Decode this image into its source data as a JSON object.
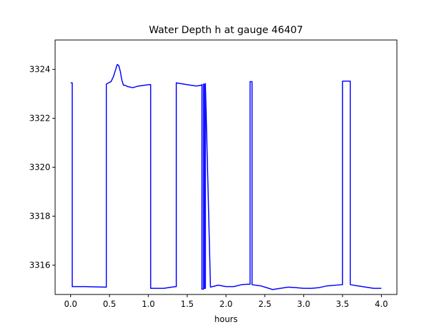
{
  "chart_data": {
    "type": "line",
    "title": "Water Depth h at gauge 46407",
    "xlabel": "hours",
    "ylabel": "",
    "xlim": [
      -0.2,
      4.2
    ],
    "ylim": [
      3314.8,
      3325.2
    ],
    "xticks": [
      0.0,
      0.5,
      1.0,
      1.5,
      2.0,
      2.5,
      3.0,
      3.5,
      4.0
    ],
    "xtick_labels": [
      "0.0",
      "0.5",
      "1.0",
      "1.5",
      "2.0",
      "2.5",
      "3.0",
      "3.5",
      "4.0"
    ],
    "yticks": [
      3316,
      3318,
      3320,
      3322,
      3324
    ],
    "ytick_labels": [
      "3316",
      "3318",
      "3320",
      "3322",
      "3324"
    ],
    "grid": false,
    "series": [
      {
        "color": "#0000ff",
        "x": [
          0.0,
          0.02,
          0.02,
          0.2,
          0.45,
          0.46,
          0.46,
          0.52,
          0.55,
          0.58,
          0.6,
          0.62,
          0.64,
          0.66,
          0.68,
          0.7,
          0.73,
          0.76,
          0.8,
          0.85,
          0.9,
          0.95,
          1.02,
          1.03,
          1.03,
          1.1,
          1.2,
          1.3,
          1.35,
          1.36,
          1.36,
          1.45,
          1.55,
          1.62,
          1.68,
          1.69,
          1.69,
          1.71,
          1.71,
          1.72,
          1.72,
          1.735,
          1.735,
          1.8,
          1.9,
          2.0,
          2.1,
          2.2,
          2.3,
          2.31,
          2.31,
          2.335,
          2.335,
          2.45,
          2.6,
          2.7,
          2.8,
          2.9,
          3.0,
          3.1,
          3.2,
          3.3,
          3.49,
          3.5,
          3.5,
          3.6,
          3.6,
          3.7,
          3.8,
          3.9,
          4.0
        ],
        "y": [
          3323.45,
          3323.45,
          3315.12,
          3315.12,
          3315.1,
          3315.1,
          3323.4,
          3323.5,
          3323.7,
          3324.0,
          3324.2,
          3324.15,
          3323.9,
          3323.55,
          3323.35,
          3323.35,
          3323.3,
          3323.28,
          3323.25,
          3323.3,
          3323.33,
          3323.35,
          3323.38,
          3323.38,
          3315.05,
          3315.05,
          3315.05,
          3315.1,
          3315.12,
          3315.12,
          3323.45,
          3323.4,
          3323.35,
          3323.32,
          3323.35,
          3323.38,
          3315.02,
          3315.02,
          3323.4,
          3323.4,
          3315.05,
          3315.05,
          3323.42,
          3315.1,
          3315.18,
          3315.12,
          3315.12,
          3315.2,
          3315.22,
          3315.22,
          3323.5,
          3323.5,
          3315.2,
          3315.15,
          3315.0,
          3315.05,
          3315.1,
          3315.08,
          3315.05,
          3315.05,
          3315.08,
          3315.15,
          3315.2,
          3315.2,
          3323.52,
          3323.52,
          3315.2,
          3315.15,
          3315.1,
          3315.05,
          3315.05
        ]
      }
    ]
  }
}
